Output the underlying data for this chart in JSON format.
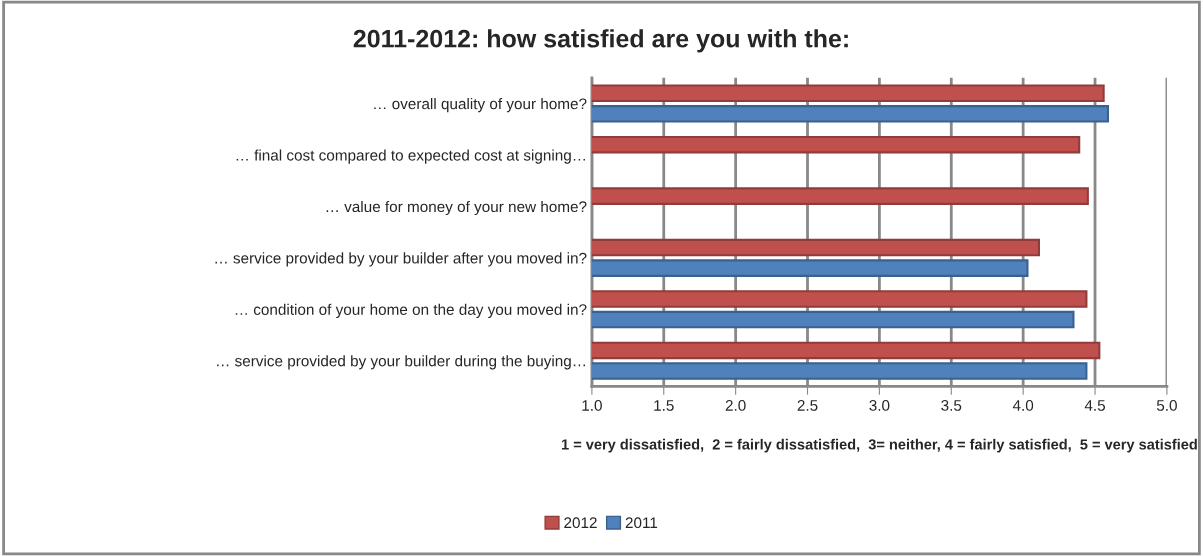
{
  "chart_data": {
    "type": "bar",
    "orientation": "horizontal",
    "title": "2011-2012: how satisfied are you with the:",
    "xlabel": "1 = very dissatisfied,  2 = fairly dissatisfied,  3= neither, 4 = fairly satisfied,  5 = very satisfied",
    "categories": [
      "… overall quality of your home?",
      "… final cost compared to expected cost at signing…",
      "… value for money of your new home?",
      "… service provided by your builder after you moved in?",
      "… condition of your home on the day you moved in?",
      "… service provided by your builder during the buying…"
    ],
    "series": [
      {
        "name": "2012",
        "color": "#c0504d",
        "values": [
          4.56,
          4.39,
          4.45,
          4.11,
          4.44,
          4.53
        ]
      },
      {
        "name": "2011",
        "color": "#4f81bd",
        "values": [
          4.59,
          null,
          null,
          4.03,
          4.35,
          4.44
        ]
      }
    ],
    "xlim": [
      1.0,
      5.0
    ],
    "xticks": [
      {
        "value": 1.0,
        "label": "1.0"
      },
      {
        "value": 1.5,
        "label": "1.5"
      },
      {
        "value": 2.0,
        "label": "2.0"
      },
      {
        "value": 2.5,
        "label": "2.5"
      },
      {
        "value": 3.0,
        "label": "3.0"
      },
      {
        "value": 3.5,
        "label": "3.5"
      },
      {
        "value": 4.0,
        "label": "4.0"
      },
      {
        "value": 4.5,
        "label": "4.5"
      },
      {
        "value": 5.0,
        "label": "5.0"
      }
    ],
    "grid": "x",
    "legend": "bottom"
  }
}
